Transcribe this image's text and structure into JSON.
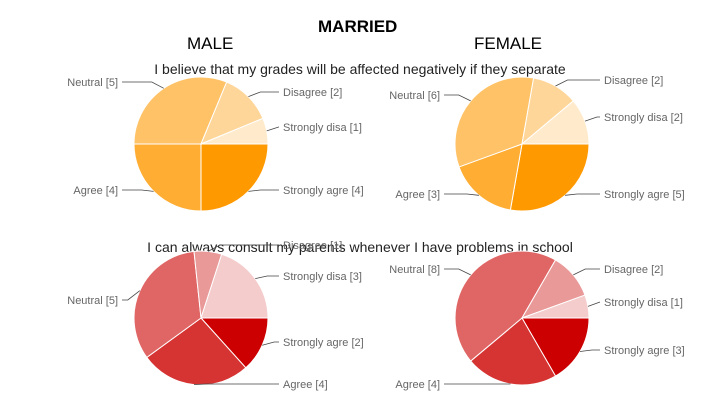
{
  "headings": {
    "married": "MARRIED",
    "male": "MALE",
    "female": "FEMALE"
  },
  "questions": [
    "I believe that my grades will be affected negatively if they separate",
    "I can always consult my parents whenever I have problems in school"
  ],
  "chart_data": [
    {
      "type": "pie",
      "group": "MALE",
      "question": "I believe that my grades will be affected negatively if they separate",
      "slices": [
        {
          "label": "Strongly agre",
          "value": 4,
          "color": "#ff9900"
        },
        {
          "label": "Agree",
          "value": 4,
          "color": "#ffad33"
        },
        {
          "label": "Neutral",
          "value": 5,
          "color": "#ffc266"
        },
        {
          "label": "Disagree",
          "value": 2,
          "color": "#ffd699"
        },
        {
          "label": "Strongly disa",
          "value": 1,
          "color": "#ffebcc"
        }
      ]
    },
    {
      "type": "pie",
      "group": "FEMALE",
      "question": "I believe that my grades will be affected negatively if they separate",
      "slices": [
        {
          "label": "Strongly agre",
          "value": 5,
          "color": "#ff9900"
        },
        {
          "label": "Agree",
          "value": 3,
          "color": "#ffad33"
        },
        {
          "label": "Neutral",
          "value": 6,
          "color": "#ffc266"
        },
        {
          "label": "Disagree",
          "value": 2,
          "color": "#ffd699"
        },
        {
          "label": "Strongly disa",
          "value": 2,
          "color": "#ffebcc"
        }
      ]
    },
    {
      "type": "pie",
      "group": "MALE",
      "question": "I can always consult my parents whenever I have problems in school",
      "slices": [
        {
          "label": "Strongly agre",
          "value": 2,
          "color": "#cc0000"
        },
        {
          "label": "Agree",
          "value": 4,
          "color": "#d63333"
        },
        {
          "label": "Neutral",
          "value": 5,
          "color": "#e06666"
        },
        {
          "label": "Disagree",
          "value": 1,
          "color": "#ea9999"
        },
        {
          "label": "Strongly disa",
          "value": 3,
          "color": "#f4cccc"
        }
      ]
    },
    {
      "type": "pie",
      "group": "FEMALE",
      "question": "I can always consult my parents whenever I have problems in school",
      "slices": [
        {
          "label": "Strongly agre",
          "value": 3,
          "color": "#cc0000"
        },
        {
          "label": "Agree",
          "value": 4,
          "color": "#d63333"
        },
        {
          "label": "Neutral",
          "value": 8,
          "color": "#e06666"
        },
        {
          "label": "Disagree",
          "value": 2,
          "color": "#ea9999"
        },
        {
          "label": "Strongly disa",
          "value": 1,
          "color": "#f4cccc"
        }
      ]
    }
  ]
}
